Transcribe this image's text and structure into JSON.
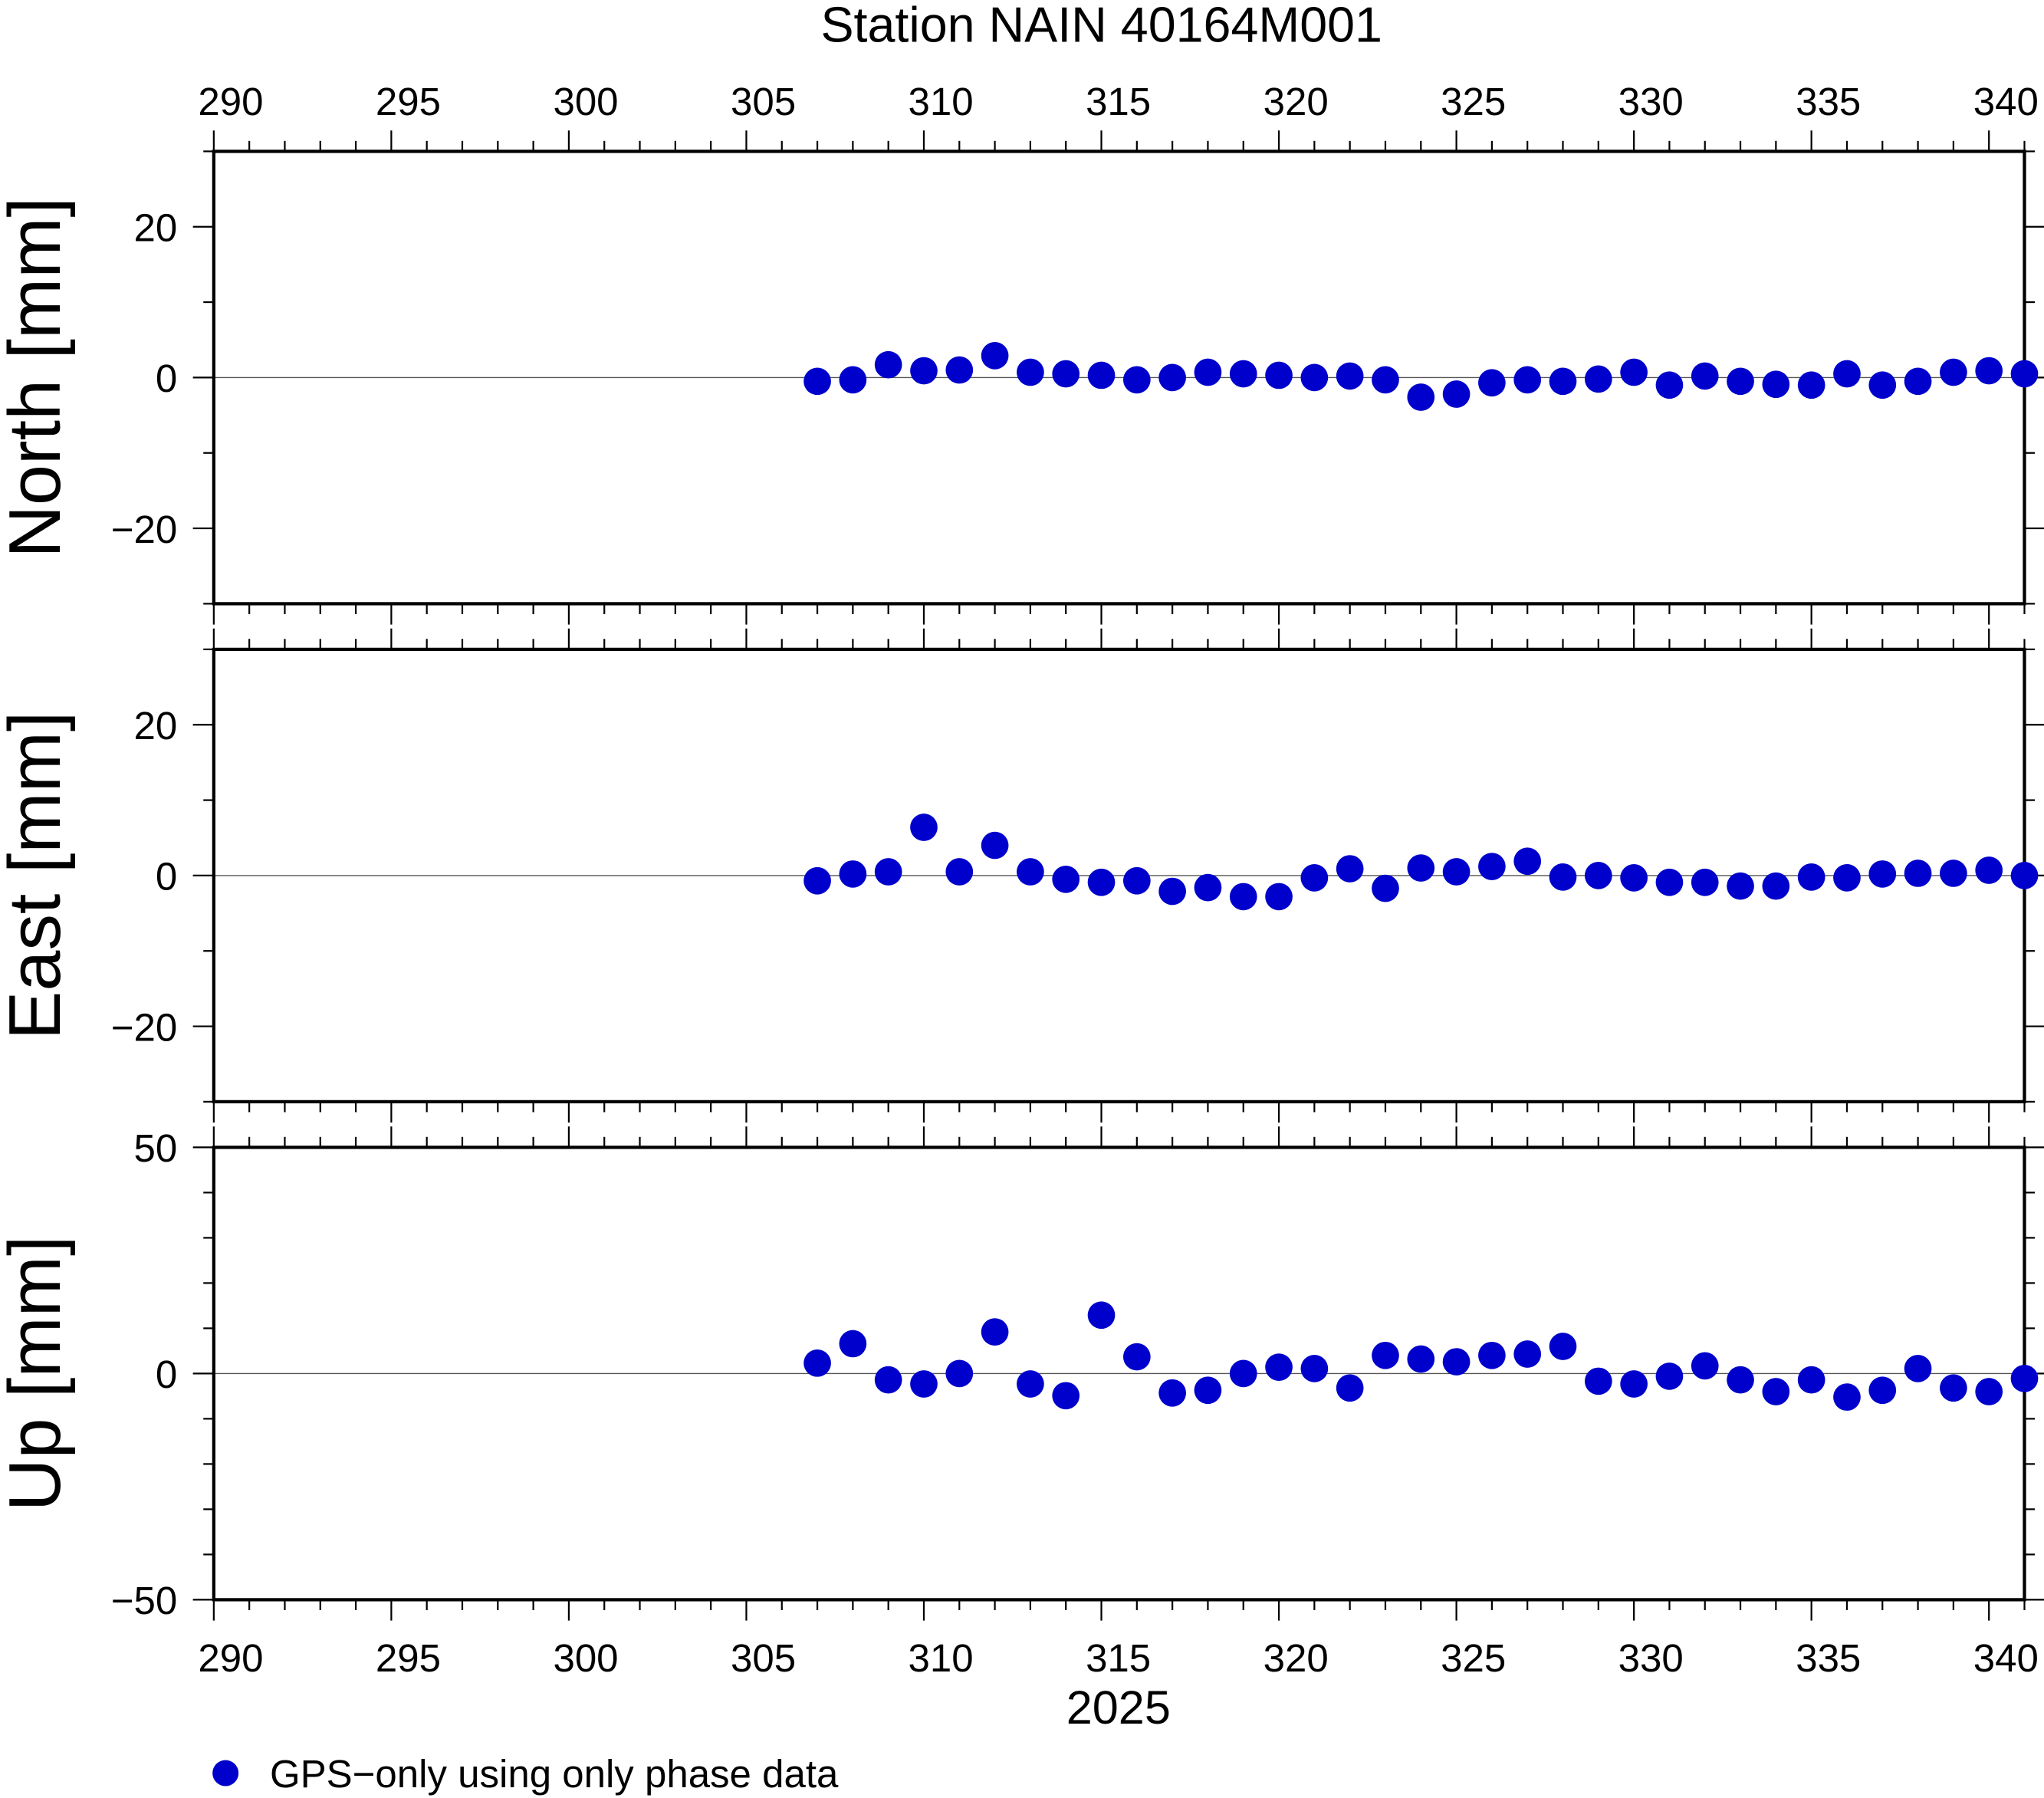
{
  "chart_data": {
    "type": "scatter",
    "title": "Station NAIN 40164M001",
    "xlabel": "2025",
    "xlim": [
      290,
      341
    ],
    "x_ticks": [
      290,
      295,
      300,
      305,
      310,
      315,
      320,
      325,
      330,
      335,
      340
    ],
    "marker_color": "#0000cc",
    "legend": {
      "label": "GPS−only using only phase data",
      "placement": "bottom-left"
    },
    "x": [
      307,
      308,
      309,
      310,
      311,
      312,
      313,
      314,
      315,
      316,
      317,
      318,
      319,
      320,
      321,
      322,
      323,
      324,
      325,
      326,
      327,
      328,
      329,
      330,
      331,
      332,
      333,
      334,
      335,
      336,
      337,
      338,
      339,
      340,
      341
    ],
    "panels": [
      {
        "ylabel": "North [mm]",
        "ylim": [
          -30,
          30
        ],
        "y_ticks": [
          -20,
          0,
          20
        ],
        "y_tick_labels": [
          "−20",
          "0",
          "20"
        ],
        "values": [
          -0.5,
          -0.3,
          1.7,
          0.9,
          1.0,
          2.9,
          0.7,
          0.5,
          0.3,
          -0.3,
          0,
          0.7,
          0.5,
          0.3,
          0,
          0.2,
          -0.3,
          -2.6,
          -2.2,
          -0.7,
          -0.3,
          -0.5,
          -0.2,
          0.7,
          -1.0,
          0.2,
          -0.5,
          -0.9,
          -1.0,
          0.5,
          -1.0,
          -0.5,
          0.7,
          0.9,
          0.5
        ]
      },
      {
        "ylabel": "East [mm]",
        "ylim": [
          -30,
          30
        ],
        "y_ticks": [
          -20,
          0,
          20
        ],
        "y_tick_labels": [
          "−20",
          "0",
          "20"
        ],
        "values": [
          -0.7,
          0.2,
          0.5,
          6.4,
          0.5,
          4.0,
          0.5,
          -0.5,
          -0.9,
          -0.7,
          -2.1,
          -1.6,
          -2.8,
          -2.8,
          -0.3,
          0.9,
          -1.7,
          1.0,
          0.5,
          1.2,
          1.9,
          -0.2,
          0,
          -0.3,
          -0.9,
          -0.9,
          -1.4,
          -1.4,
          -0.2,
          -0.3,
          0.2,
          0.3,
          0.3,
          0.7,
          0
        ]
      },
      {
        "ylabel": "Up [mm]",
        "ylim": [
          -50,
          50
        ],
        "y_ticks": [
          -50,
          0,
          50
        ],
        "y_tick_labels": [
          "−50",
          "0",
          "50"
        ],
        "values": [
          2.3,
          6.6,
          -1.4,
          -2.3,
          0,
          9.2,
          -2.3,
          -4.9,
          12.9,
          3.7,
          -4.3,
          -3.7,
          0,
          1.4,
          1.1,
          -3.2,
          4.0,
          3.2,
          2.6,
          4.0,
          4.3,
          6.0,
          -1.7,
          -2.3,
          -0.6,
          1.7,
          -1.4,
          -4.0,
          -1.4,
          -5.2,
          -3.7,
          1.1,
          -3.2,
          -4.0,
          -1.1
        ]
      }
    ]
  }
}
